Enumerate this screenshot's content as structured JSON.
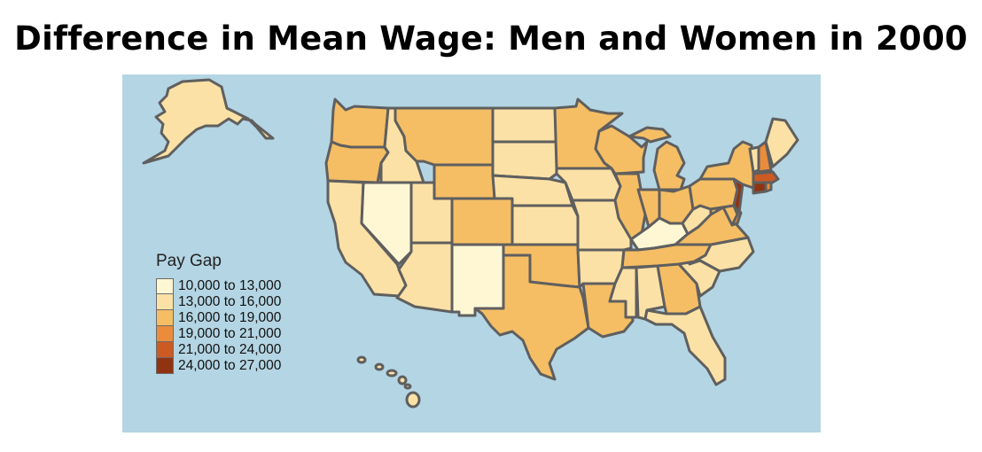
{
  "title": "Difference in Mean Wage: Men and Women in 2000",
  "legend": {
    "title": "Pay Gap",
    "bins": [
      {
        "label": "10,000 to 13,000",
        "color": "#fff7d4"
      },
      {
        "label": "13,000 to 16,000",
        "color": "#fbe1a5"
      },
      {
        "label": "16,000 to 19,000",
        "color": "#f5be64"
      },
      {
        "label": "19,000 to 21,000",
        "color": "#ea8c3c"
      },
      {
        "label": "21,000 to 24,000",
        "color": "#cc5a23"
      },
      {
        "label": "24,000 to 27,000",
        "color": "#8f3312"
      }
    ]
  },
  "colors": {
    "water": "#b4d5e3",
    "border": "#5f5f5f",
    "background": "#ffffff"
  },
  "states": {
    "AK": 1,
    "WA": 2,
    "OR": 2,
    "CA": 1,
    "ID": 1,
    "NV": 0,
    "MT": 2,
    "WY": 2,
    "UT": 1,
    "AZ": 1,
    "CO": 2,
    "NM": 0,
    "ND": 1,
    "SD": 1,
    "NE": 1,
    "KS": 1,
    "OK": 2,
    "TX": 2,
    "MN": 2,
    "IA": 1,
    "MO": 1,
    "AR": 1,
    "LA": 2,
    "WI": 2,
    "IL": 2,
    "MI": 2,
    "IN": 2,
    "OH": 2,
    "KY": 0,
    "TN": 2,
    "MS": 1,
    "AL": 1,
    "GA": 2,
    "FL": 1,
    "SC": 1,
    "NC": 1,
    "VA": 2,
    "WV": 1,
    "PA": 2,
    "NY": 2,
    "VT": 1,
    "NH": 3,
    "ME": 1,
    "MA": 4,
    "CT": 5,
    "RI": 3,
    "NJ": 5,
    "DE": 3,
    "MD": 2,
    "HI": 1
  }
}
